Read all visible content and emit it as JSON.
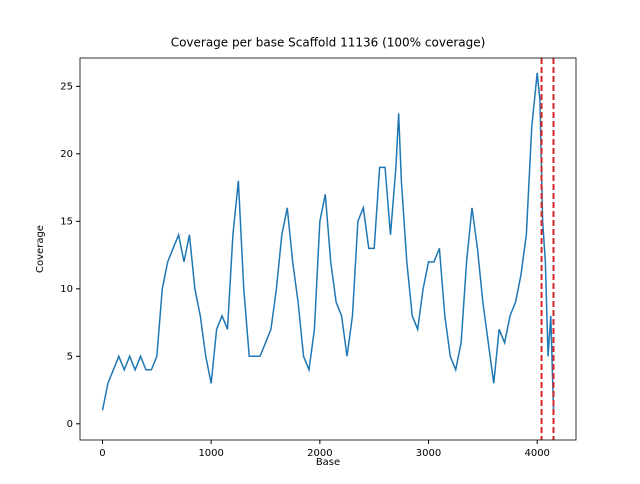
{
  "chart_data": {
    "type": "line",
    "title": "Coverage per base Scaffold 11136 (100% coverage)",
    "xlabel": "Base",
    "ylabel": "Coverage",
    "x": [
      0,
      50,
      100,
      150,
      200,
      250,
      300,
      350,
      400,
      450,
      500,
      550,
      600,
      650,
      700,
      750,
      800,
      850,
      900,
      950,
      1000,
      1050,
      1100,
      1150,
      1200,
      1250,
      1300,
      1350,
      1400,
      1450,
      1500,
      1550,
      1600,
      1650,
      1700,
      1750,
      1800,
      1850,
      1900,
      1950,
      2000,
      2050,
      2100,
      2150,
      2200,
      2250,
      2300,
      2350,
      2400,
      2450,
      2500,
      2550,
      2600,
      2650,
      2700,
      2725,
      2750,
      2800,
      2850,
      2900,
      2950,
      3000,
      3050,
      3100,
      3150,
      3200,
      3250,
      3300,
      3350,
      3400,
      3450,
      3500,
      3550,
      3600,
      3650,
      3700,
      3750,
      3800,
      3850,
      3900,
      3950,
      3975,
      4000,
      4025,
      4050,
      4075,
      4100,
      4125,
      4150
    ],
    "series": [
      {
        "name": "Coverage",
        "color": "#1f77b4",
        "values": [
          1,
          3,
          4,
          5,
          4,
          5,
          4,
          5,
          4,
          4,
          5,
          10,
          12,
          13,
          14,
          12,
          14,
          10,
          8,
          5,
          3,
          7,
          8,
          7,
          14,
          18,
          10,
          5,
          5,
          5,
          6,
          7,
          10,
          14,
          16,
          12,
          9,
          5,
          4,
          7,
          15,
          17,
          12,
          9,
          8,
          5,
          8,
          15,
          16,
          13,
          13,
          19,
          19,
          14,
          19,
          23,
          18,
          12,
          8,
          7,
          10,
          12,
          12,
          13,
          8,
          5,
          4,
          6,
          12,
          16,
          13,
          9,
          6,
          3,
          7,
          6,
          8,
          9,
          11,
          14,
          22,
          24,
          26,
          24,
          15,
          12,
          5,
          8,
          1
        ]
      }
    ],
    "vlines": [
      4040,
      4150
    ],
    "vline_color": "#d62728",
    "xlim": [
      -207,
      4357
    ],
    "xticks": [
      0,
      1000,
      2000,
      3000,
      4000
    ],
    "ylim": [
      -1.2,
      27.1
    ],
    "yticks": [
      0,
      5,
      10,
      15,
      20,
      25
    ]
  }
}
